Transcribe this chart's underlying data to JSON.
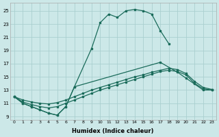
{
  "xlabel": "Humidex (Indice chaleur)",
  "bg_color": "#cce8e8",
  "grid_color": "#aacfcf",
  "line_color": "#1a6b5a",
  "xlim": [
    -0.5,
    23.5
  ],
  "ylim": [
    8.5,
    26.2
  ],
  "xticks": [
    0,
    1,
    2,
    3,
    4,
    5,
    6,
    7,
    8,
    9,
    10,
    11,
    12,
    13,
    14,
    15,
    16,
    17,
    18,
    19,
    20,
    21,
    22,
    23
  ],
  "yticks": [
    9,
    11,
    13,
    15,
    17,
    19,
    21,
    23,
    25
  ],
  "main_x": [
    0,
    1,
    2,
    3,
    4,
    5,
    6,
    7,
    9,
    10,
    11,
    12,
    13,
    14,
    15,
    16,
    17,
    18
  ],
  "main_y": [
    12.0,
    11.0,
    10.5,
    10.0,
    9.5,
    9.2,
    10.5,
    13.5,
    19.3,
    23.2,
    24.5,
    24.0,
    25.0,
    25.2,
    25.0,
    24.5,
    22.0,
    20.0
  ],
  "line2_x": [
    0,
    1,
    2,
    3,
    4,
    5,
    6,
    7,
    8,
    9,
    10,
    11,
    12,
    13,
    14,
    15,
    16,
    17,
    18,
    19,
    20,
    21,
    22,
    23
  ],
  "line2_y": [
    12.0,
    11.2,
    10.8,
    10.5,
    10.3,
    10.5,
    11.0,
    11.5,
    12.0,
    12.5,
    13.0,
    13.4,
    13.8,
    14.2,
    14.6,
    15.0,
    15.4,
    15.8,
    16.0,
    15.8,
    15.3,
    14.0,
    13.2,
    13.0
  ],
  "line3_x": [
    0,
    1,
    2,
    3,
    4,
    5,
    6,
    7,
    8,
    9,
    10,
    11,
    12,
    13,
    14,
    15,
    16,
    17,
    18,
    19,
    20,
    21,
    22,
    23
  ],
  "line3_y": [
    12.0,
    11.5,
    11.2,
    11.0,
    10.9,
    11.1,
    11.5,
    12.0,
    12.5,
    13.0,
    13.4,
    13.8,
    14.2,
    14.6,
    15.0,
    15.3,
    15.7,
    16.0,
    16.3,
    16.1,
    15.5,
    14.3,
    13.4,
    13.1
  ],
  "line4_x": [
    0,
    1,
    2,
    3,
    4,
    5,
    6,
    7,
    17,
    19,
    20,
    22,
    23
  ],
  "line4_y": [
    12.0,
    11.0,
    10.5,
    10.0,
    9.5,
    9.2,
    10.5,
    13.5,
    17.2,
    15.7,
    14.8,
    13.0,
    13.0
  ]
}
